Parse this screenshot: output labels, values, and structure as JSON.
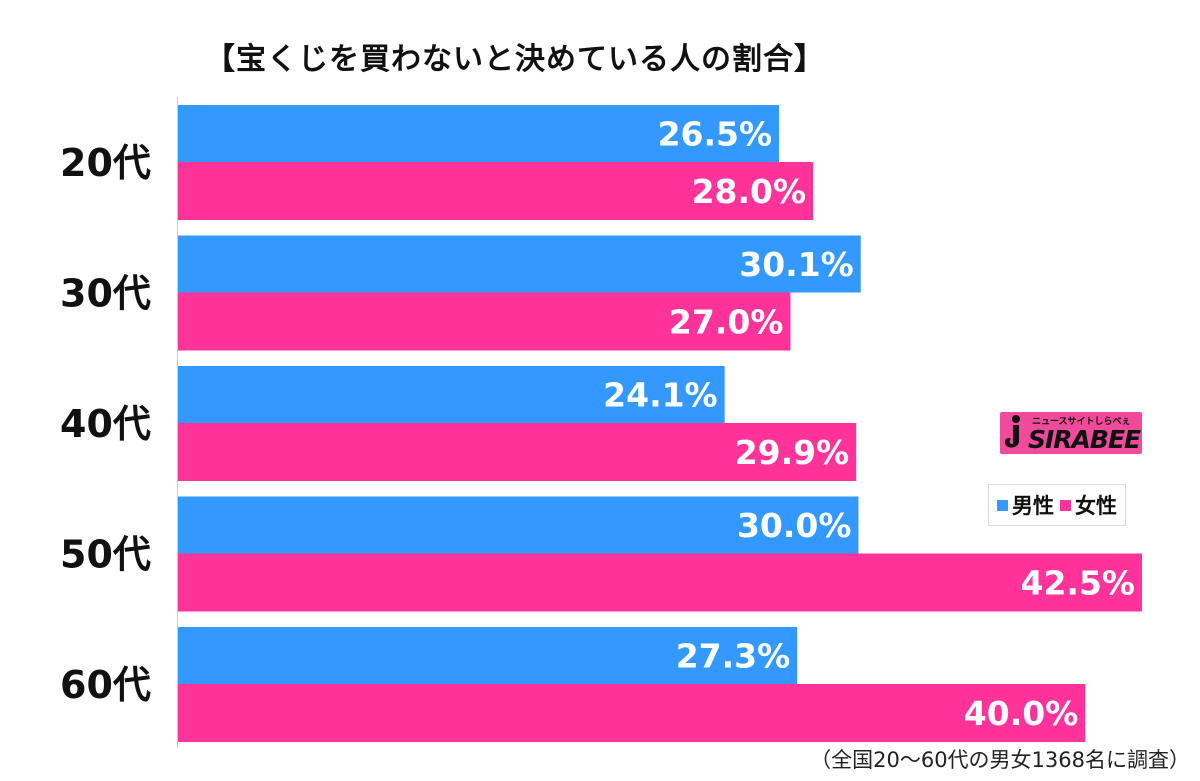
{
  "chart_data": {
    "type": "bar",
    "orientation": "horizontal",
    "title": "【宝くじを買わないと決めている人の割合】",
    "categories": [
      "20代",
      "30代",
      "40代",
      "50代",
      "60代"
    ],
    "series": [
      {
        "name": "男性",
        "color": "#3399ff",
        "values": [
          26.5,
          30.1,
          24.1,
          30.0,
          27.3
        ],
        "labels": [
          "26.5%",
          "30.1%",
          "24.1%",
          "30.0%",
          "27.3%"
        ]
      },
      {
        "name": "女性",
        "color": "#ff3399",
        "values": [
          28.0,
          27.0,
          29.9,
          42.5,
          40.0
        ],
        "labels": [
          "28.0%",
          "27.0%",
          "29.9%",
          "42.5%",
          "40.0%"
        ]
      }
    ],
    "xlim": [
      0,
      42.5
    ],
    "grid": false,
    "legend_position": "right"
  },
  "logo": {
    "tagline": "ニュースサイトしらべぇ",
    "text": "SIRABEE",
    "icon": "i-logo-icon"
  },
  "footnote": "（全国20～60代の男女1368名に調査）"
}
